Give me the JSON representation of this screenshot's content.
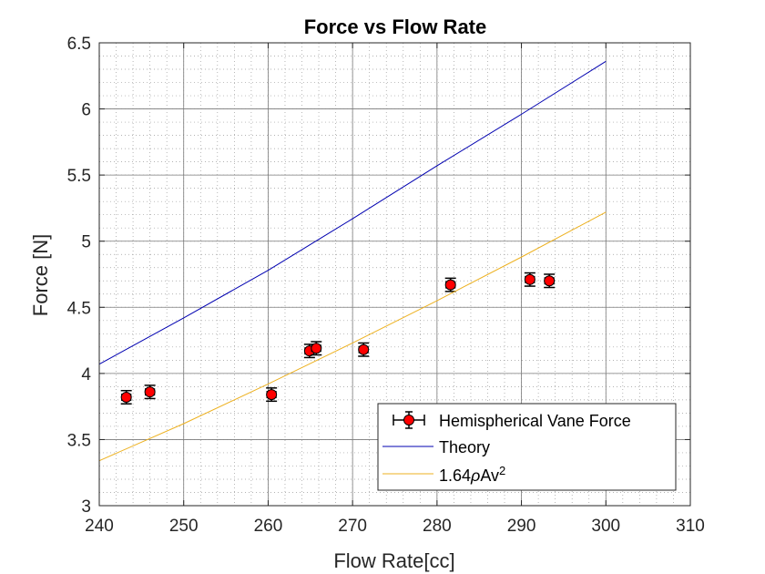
{
  "chart_data": {
    "type": "scatter",
    "title": "Force vs Flow Rate",
    "xlabel": "Flow Rate[cc]",
    "ylabel": "Force [N]",
    "xlim": [
      240,
      310
    ],
    "ylim": [
      3,
      6.5
    ],
    "xticks": [
      "240",
      "250",
      "260",
      "270",
      "280",
      "290",
      "300",
      "310"
    ],
    "yticks": [
      "3",
      "3.5",
      "4",
      "4.5",
      "5",
      "5.5",
      "6",
      "6.5"
    ],
    "grid": true,
    "minor_grid": true,
    "legend_position": "bottom-right",
    "series": [
      {
        "name": "Hemispherical Vane Force",
        "kind": "errorbar-markers",
        "color": "#ff0000",
        "points": [
          {
            "x": 243.2,
            "y": 3.82,
            "err": 0.05
          },
          {
            "x": 246.0,
            "y": 3.86,
            "err": 0.05
          },
          {
            "x": 260.4,
            "y": 3.84,
            "err": 0.05
          },
          {
            "x": 264.9,
            "y": 4.17,
            "err": 0.05
          },
          {
            "x": 265.7,
            "y": 4.19,
            "err": 0.05
          },
          {
            "x": 271.3,
            "y": 4.18,
            "err": 0.05
          },
          {
            "x": 281.6,
            "y": 4.67,
            "err": 0.05
          },
          {
            "x": 291.0,
            "y": 4.71,
            "err": 0.05
          },
          {
            "x": 293.3,
            "y": 4.7,
            "err": 0.05
          }
        ]
      },
      {
        "name": "Theory",
        "kind": "line",
        "color": "#0000b0",
        "x": [
          240,
          250,
          260,
          270,
          280,
          290,
          300
        ],
        "y": [
          4.07,
          4.42,
          4.78,
          5.17,
          5.57,
          5.96,
          6.36
        ]
      },
      {
        "name": "1.64ρAv²",
        "kind": "line",
        "color": "#edb120",
        "x": [
          240,
          250,
          260,
          270,
          280,
          290,
          300
        ],
        "y": [
          3.34,
          3.62,
          3.92,
          4.23,
          4.55,
          4.88,
          5.22
        ]
      }
    ],
    "legend": {
      "entry1": "Hemispherical Vane Force",
      "entry2": "Theory",
      "entry3_prefix": "1.64",
      "entry3_rho": "ρ",
      "entry3_mid": "Av",
      "entry3_sup": "2"
    }
  }
}
